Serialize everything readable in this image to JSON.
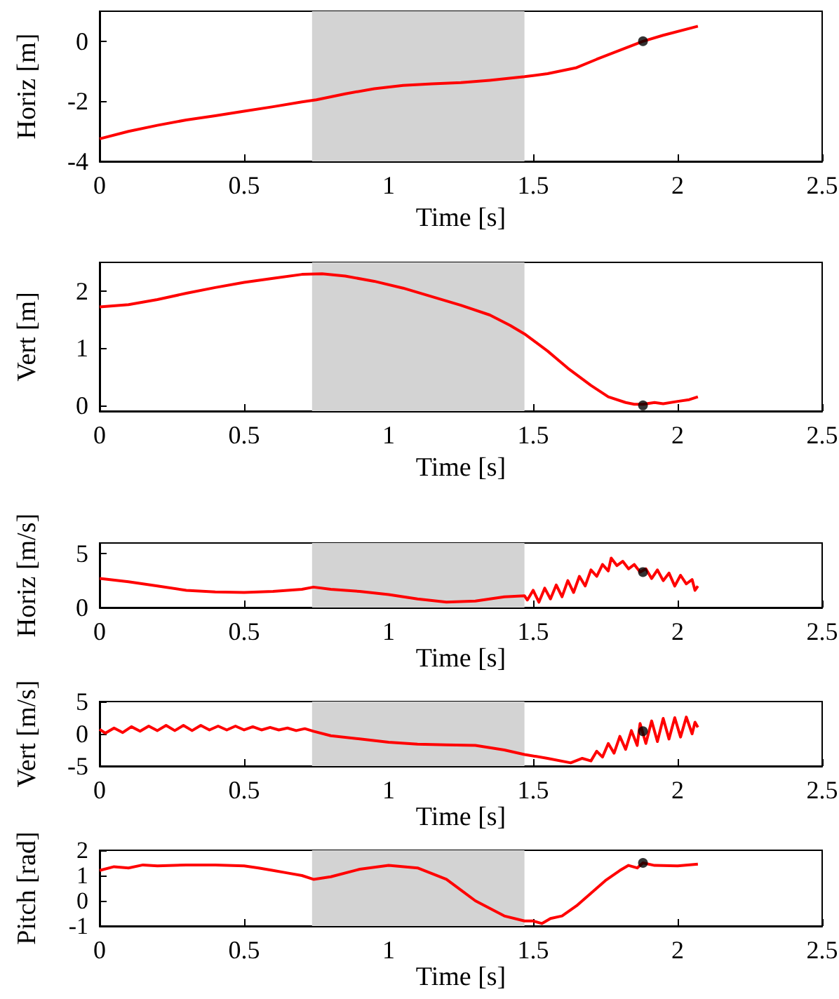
{
  "chart_data": [
    {
      "type": "line",
      "xlabel": "Time [s]",
      "ylabel": "Horiz [m]",
      "xlim": [
        0,
        2.5
      ],
      "xticks": [
        0,
        0.5,
        1,
        1.5,
        2,
        2.5
      ],
      "ylim": [
        -4,
        1
      ],
      "yticks": [
        -4,
        -2,
        0
      ],
      "bands": [
        {
          "axis": "x",
          "from": 0.735,
          "to": 1.47,
          "color": "#d3d3d3"
        }
      ],
      "series": [
        {
          "type": "line",
          "color": "#ff0000",
          "marker": "none",
          "x": [
            0,
            0.1,
            0.2,
            0.3,
            0.4,
            0.5,
            0.6,
            0.7,
            0.75,
            0.85,
            0.95,
            1.05,
            1.15,
            1.25,
            1.35,
            1.47,
            1.55,
            1.65,
            1.72,
            1.8,
            1.88,
            1.95,
            2.07
          ],
          "values": [
            -3.25,
            -3.0,
            -2.8,
            -2.62,
            -2.48,
            -2.33,
            -2.18,
            -2.02,
            -1.95,
            -1.75,
            -1.58,
            -1.47,
            -1.42,
            -1.38,
            -1.3,
            -1.18,
            -1.08,
            -0.88,
            -0.6,
            -0.3,
            0,
            0.2,
            0.5
          ]
        },
        {
          "type": "scatter",
          "color": "#000000",
          "marker": "circle",
          "x": [
            1.88
          ],
          "values": [
            0
          ]
        }
      ]
    },
    {
      "type": "line",
      "xlabel": "Time [s]",
      "ylabel": "Vert [m]",
      "xlim": [
        0,
        2.5
      ],
      "xticks": [
        0,
        0.5,
        1,
        1.5,
        2,
        2.5
      ],
      "ylim": [
        -0.1,
        2.5
      ],
      "yticks": [
        0,
        1,
        2
      ],
      "bands": [
        {
          "axis": "x",
          "from": 0.735,
          "to": 1.47,
          "color": "#d3d3d3"
        }
      ],
      "series": [
        {
          "type": "line",
          "color": "#ff0000",
          "marker": "none",
          "x": [
            0,
            0.1,
            0.2,
            0.3,
            0.4,
            0.5,
            0.6,
            0.7,
            0.77,
            0.85,
            0.95,
            1.05,
            1.15,
            1.25,
            1.35,
            1.42,
            1.47,
            1.55,
            1.62,
            1.7,
            1.76,
            1.82,
            1.85,
            1.88,
            1.92,
            1.95,
            2.0,
            2.04,
            2.07
          ],
          "values": [
            1.72,
            1.76,
            1.85,
            1.96,
            2.06,
            2.15,
            2.22,
            2.29,
            2.3,
            2.26,
            2.17,
            2.05,
            1.9,
            1.75,
            1.58,
            1.4,
            1.25,
            0.95,
            0.65,
            0.35,
            0.15,
            0.05,
            0.02,
            0.02,
            0.05,
            0.03,
            0.07,
            0.1,
            0.15
          ]
        },
        {
          "type": "scatter",
          "color": "#000000",
          "marker": "circle",
          "x": [
            1.88
          ],
          "values": [
            0
          ]
        }
      ]
    },
    {
      "type": "line",
      "xlabel": "Time [s]",
      "ylabel": "Horiz [m/s]",
      "xlim": [
        0,
        2.5
      ],
      "xticks": [
        0,
        0.5,
        1,
        1.5,
        2,
        2.5
      ],
      "ylim": [
        0,
        6
      ],
      "yticks": [
        0,
        5
      ],
      "bands": [
        {
          "axis": "x",
          "from": 0.735,
          "to": 1.47,
          "color": "#d3d3d3"
        }
      ],
      "series": [
        {
          "type": "line",
          "color": "#ff0000",
          "marker": "none",
          "x": [
            0,
            0.1,
            0.2,
            0.3,
            0.4,
            0.5,
            0.6,
            0.7,
            0.74,
            0.8,
            0.9,
            1.0,
            1.1,
            1.2,
            1.3,
            1.4,
            1.47,
            1.48,
            1.5,
            1.52,
            1.54,
            1.56,
            1.58,
            1.6,
            1.62,
            1.64,
            1.66,
            1.68,
            1.7,
            1.72,
            1.74,
            1.76,
            1.77,
            1.79,
            1.81,
            1.83,
            1.85,
            1.87,
            1.89,
            1.91,
            1.93,
            1.95,
            1.97,
            1.99,
            2.01,
            2.03,
            2.05,
            2.06,
            2.07
          ],
          "values": [
            2.7,
            2.4,
            2.0,
            1.6,
            1.45,
            1.4,
            1.5,
            1.7,
            1.9,
            1.7,
            1.5,
            1.2,
            0.8,
            0.5,
            0.6,
            1.0,
            1.1,
            0.7,
            1.6,
            0.5,
            1.8,
            0.8,
            2.1,
            1.0,
            2.5,
            1.4,
            2.9,
            2.0,
            3.5,
            2.9,
            4.0,
            3.4,
            4.6,
            3.9,
            4.3,
            3.6,
            4.0,
            3.3,
            3.6,
            2.7,
            3.5,
            2.5,
            3.2,
            2.0,
            3.0,
            2.2,
            2.6,
            1.6,
            2.0
          ]
        },
        {
          "type": "scatter",
          "color": "#000000",
          "marker": "circle",
          "x": [
            1.88
          ],
          "values": [
            3.3
          ]
        }
      ]
    },
    {
      "type": "line",
      "xlabel": "Time [s]",
      "ylabel": "Vert [m/s]",
      "xlim": [
        0,
        2.5
      ],
      "xticks": [
        0,
        0.5,
        1,
        1.5,
        2,
        2.5
      ],
      "ylim": [
        -5,
        5
      ],
      "yticks": [
        -5,
        0,
        5
      ],
      "bands": [
        {
          "axis": "x",
          "from": 0.735,
          "to": 1.47,
          "color": "#d3d3d3"
        }
      ],
      "series": [
        {
          "type": "line",
          "color": "#ff0000",
          "marker": "none",
          "x": [
            0,
            0.02,
            0.05,
            0.08,
            0.11,
            0.14,
            0.17,
            0.2,
            0.23,
            0.26,
            0.29,
            0.32,
            0.35,
            0.38,
            0.41,
            0.44,
            0.47,
            0.5,
            0.53,
            0.56,
            0.59,
            0.62,
            0.65,
            0.68,
            0.71,
            0.74,
            0.8,
            0.9,
            1.0,
            1.1,
            1.2,
            1.3,
            1.4,
            1.47,
            1.55,
            1.63,
            1.67,
            1.7,
            1.72,
            1.74,
            1.76,
            1.78,
            1.8,
            1.82,
            1.84,
            1.86,
            1.87,
            1.89,
            1.91,
            1.93,
            1.95,
            1.97,
            1.99,
            2.01,
            2.03,
            2.05,
            2.06,
            2.07
          ],
          "values": [
            0.7,
            0.1,
            0.9,
            0.2,
            1.1,
            0.4,
            1.2,
            0.5,
            1.3,
            0.5,
            1.3,
            0.5,
            1.3,
            0.6,
            1.2,
            0.6,
            1.2,
            0.6,
            1.1,
            0.6,
            1.0,
            0.6,
            0.9,
            0.5,
            0.8,
            0.4,
            -0.3,
            -0.8,
            -1.3,
            -1.6,
            -1.7,
            -1.8,
            -2.5,
            -3.2,
            -3.8,
            -4.5,
            -3.8,
            -4.2,
            -2.7,
            -3.6,
            -1.5,
            -3.0,
            -0.4,
            -2.4,
            0.5,
            -1.8,
            1.6,
            -1.5,
            2.0,
            -1.2,
            2.4,
            -0.8,
            2.5,
            -0.5,
            2.6,
            0.0,
            1.8,
            1.0
          ]
        },
        {
          "type": "scatter",
          "color": "#000000",
          "marker": "circle",
          "x": [
            1.88
          ],
          "values": [
            0.4
          ]
        }
      ]
    },
    {
      "type": "line",
      "xlabel": "Time [s]",
      "ylabel": "Pitch [rad]",
      "xlim": [
        0,
        2.5
      ],
      "xticks": [
        0,
        0.5,
        1,
        1.5,
        2,
        2.5
      ],
      "ylim": [
        -1,
        2
      ],
      "yticks": [
        -1,
        0,
        1,
        2
      ],
      "bands": [
        {
          "axis": "x",
          "from": 0.735,
          "to": 1.47,
          "color": "#d3d3d3"
        }
      ],
      "series": [
        {
          "type": "line",
          "color": "#ff0000",
          "marker": "none",
          "x": [
            0,
            0.05,
            0.1,
            0.15,
            0.2,
            0.3,
            0.4,
            0.5,
            0.55,
            0.6,
            0.65,
            0.7,
            0.74,
            0.8,
            0.9,
            1.0,
            1.1,
            1.2,
            1.3,
            1.4,
            1.47,
            1.5,
            1.53,
            1.56,
            1.6,
            1.65,
            1.7,
            1.75,
            1.8,
            1.83,
            1.86,
            1.88,
            1.92,
            2.0,
            2.07
          ],
          "values": [
            1.2,
            1.35,
            1.3,
            1.42,
            1.38,
            1.42,
            1.42,
            1.38,
            1.3,
            1.2,
            1.1,
            1.0,
            0.85,
            0.95,
            1.25,
            1.4,
            1.3,
            0.85,
            0.0,
            -0.6,
            -0.8,
            -0.8,
            -0.9,
            -0.7,
            -0.6,
            -0.2,
            0.3,
            0.8,
            1.2,
            1.4,
            1.3,
            1.5,
            1.4,
            1.38,
            1.45
          ]
        },
        {
          "type": "scatter",
          "color": "#000000",
          "marker": "circle",
          "x": [
            1.88
          ],
          "values": [
            1.5
          ]
        }
      ]
    }
  ]
}
